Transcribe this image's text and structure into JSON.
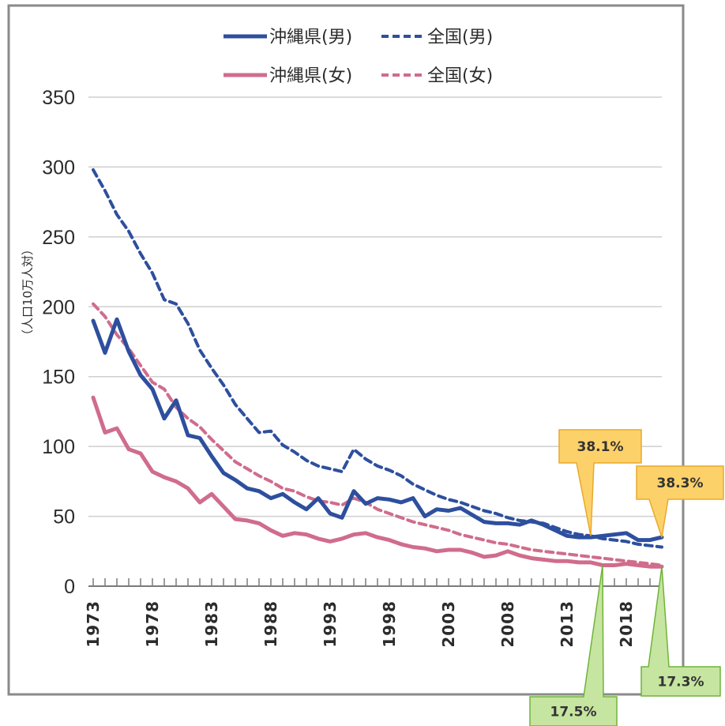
{
  "chart_data": {
    "type": "line",
    "ylabel": "（人口10万人対）",
    "xlabel": "",
    "ylim": [
      0,
      350
    ],
    "y_ticks": [
      0,
      50,
      100,
      150,
      200,
      250,
      300,
      350
    ],
    "x_range": [
      1973,
      2021
    ],
    "x_tick_labels": [
      "1973",
      "1978",
      "1983",
      "1988",
      "1993",
      "1998",
      "2003",
      "2008",
      "2013",
      "2018"
    ],
    "x_tick_values": [
      1973,
      1978,
      1983,
      1988,
      1993,
      1998,
      2003,
      2008,
      2013,
      2018
    ],
    "grid": true,
    "legend_position": "top",
    "series": [
      {
        "name": "沖縄県(男)",
        "style": "solid",
        "color": "#2d4f9e",
        "x": [
          1973,
          1974,
          1975,
          1976,
          1977,
          1978,
          1979,
          1980,
          1981,
          1982,
          1983,
          1984,
          1985,
          1986,
          1987,
          1988,
          1989,
          1990,
          1991,
          1992,
          1993,
          1994,
          1995,
          1996,
          1997,
          1998,
          1999,
          2000,
          2001,
          2002,
          2003,
          2004,
          2005,
          2006,
          2007,
          2008,
          2009,
          2010,
          2011,
          2012,
          2013,
          2014,
          2015,
          2016,
          2017,
          2018,
          2019,
          2020,
          2021
        ],
        "values": [
          190,
          167,
          191,
          168,
          151,
          141,
          120,
          133,
          108,
          106,
          93,
          81,
          76,
          70,
          68,
          63,
          66,
          60,
          55,
          63,
          52,
          49,
          68,
          59,
          63,
          62,
          60,
          63,
          50,
          55,
          54,
          56,
          51,
          46,
          45,
          45,
          44,
          47,
          44,
          40,
          36,
          35,
          35,
          36,
          37,
          38,
          33,
          33,
          35
        ]
      },
      {
        "name": "全国(男)",
        "style": "dashed",
        "color": "#2d4f9e",
        "x": [
          1973,
          1974,
          1975,
          1976,
          1977,
          1978,
          1979,
          1980,
          1981,
          1982,
          1983,
          1984,
          1985,
          1986,
          1987,
          1988,
          1989,
          1990,
          1991,
          1992,
          1993,
          1994,
          1995,
          1996,
          1997,
          1998,
          1999,
          2000,
          2001,
          2002,
          2003,
          2004,
          2005,
          2006,
          2007,
          2008,
          2009,
          2010,
          2011,
          2012,
          2013,
          2014,
          2015,
          2016,
          2017,
          2018,
          2019,
          2020,
          2021
        ],
        "values": [
          298,
          283,
          266,
          254,
          238,
          224,
          205,
          202,
          188,
          169,
          156,
          144,
          130,
          120,
          110,
          111,
          101,
          96,
          90,
          86,
          84,
          82,
          98,
          91,
          86,
          83,
          79,
          73,
          69,
          65,
          62,
          60,
          57,
          54,
          52,
          49,
          47,
          46,
          45,
          42,
          39,
          37,
          36,
          34,
          33,
          32,
          30,
          29,
          28
        ]
      },
      {
        "name": "沖縄県(女)",
        "style": "solid",
        "color": "#d06c8c",
        "x": [
          1973,
          1974,
          1975,
          1976,
          1977,
          1978,
          1979,
          1980,
          1981,
          1982,
          1983,
          1984,
          1985,
          1986,
          1987,
          1988,
          1989,
          1990,
          1991,
          1992,
          1993,
          1994,
          1995,
          1996,
          1997,
          1998,
          1999,
          2000,
          2001,
          2002,
          2003,
          2004,
          2005,
          2006,
          2007,
          2008,
          2009,
          2010,
          2011,
          2012,
          2013,
          2014,
          2015,
          2016,
          2017,
          2018,
          2019,
          2020,
          2021
        ],
        "values": [
          135,
          110,
          113,
          98,
          95,
          82,
          78,
          75,
          70,
          60,
          66,
          57,
          48,
          47,
          45,
          40,
          36,
          38,
          37,
          34,
          32,
          34,
          37,
          38,
          35,
          33,
          30,
          28,
          27,
          25,
          26,
          26,
          24,
          21,
          22,
          25,
          22,
          20,
          19,
          18,
          18,
          17,
          17,
          15,
          15,
          16,
          15,
          14,
          14
        ]
      },
      {
        "name": "全国(女)",
        "style": "dashed",
        "color": "#d06c8c",
        "x": [
          1973,
          1974,
          1975,
          1976,
          1977,
          1978,
          1979,
          1980,
          1981,
          1982,
          1983,
          1984,
          1985,
          1986,
          1987,
          1988,
          1989,
          1990,
          1991,
          1992,
          1993,
          1994,
          1995,
          1996,
          1997,
          1998,
          1999,
          2000,
          2001,
          2002,
          2003,
          2004,
          2005,
          2006,
          2007,
          2008,
          2009,
          2010,
          2011,
          2012,
          2013,
          2014,
          2015,
          2016,
          2017,
          2018,
          2019,
          2020,
          2021
        ],
        "values": [
          202,
          193,
          180,
          170,
          158,
          146,
          141,
          128,
          120,
          114,
          105,
          97,
          89,
          84,
          79,
          75,
          70,
          68,
          64,
          61,
          60,
          58,
          63,
          60,
          55,
          52,
          49,
          46,
          44,
          42,
          40,
          37,
          35,
          33,
          31,
          30,
          28,
          26,
          25,
          24,
          23,
          22,
          21,
          20,
          19,
          18,
          17,
          16,
          15
        ]
      }
    ],
    "callouts": [
      {
        "label": "38.1%",
        "color": "#fdd16a",
        "border": "#e8a92b",
        "point_year": 2015,
        "point_value": 36
      },
      {
        "label": "38.3%",
        "color": "#fdd16a",
        "border": "#e8a92b",
        "point_year": 2021,
        "point_value": 35
      },
      {
        "label": "17.5%",
        "color": "#c6e5a0",
        "border": "#6fb33a",
        "point_year": 2016,
        "point_value": 15
      },
      {
        "label": "17.3%",
        "color": "#c6e5a0",
        "border": "#6fb33a",
        "point_year": 2021,
        "point_value": 14
      }
    ]
  }
}
